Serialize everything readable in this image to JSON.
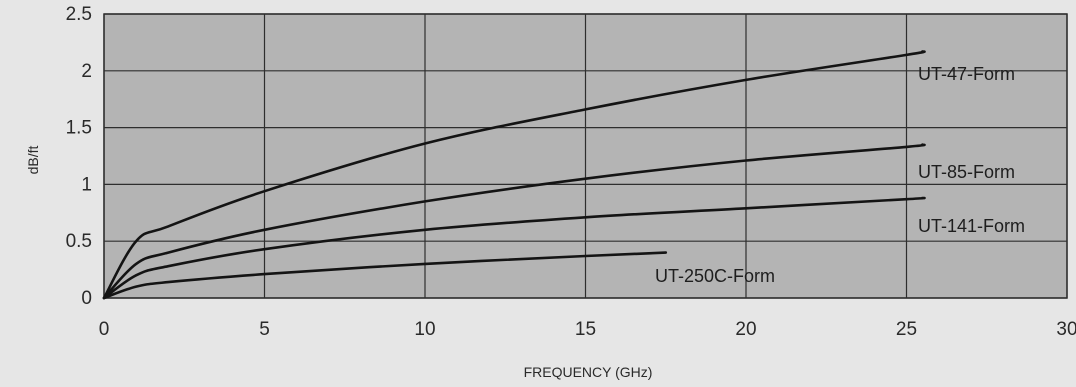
{
  "chart_data": {
    "type": "line",
    "title": "",
    "xlabel": "FREQUENCY (GHz)",
    "ylabel": "dB/ft",
    "xlim": [
      0,
      30
    ],
    "ylim": [
      0,
      2.5
    ],
    "x_ticks": [
      "0",
      "5",
      "10",
      "15",
      "20",
      "25",
      "30"
    ],
    "y_ticks": [
      "0",
      "0.5",
      "1",
      "1.5",
      "2",
      "2.5"
    ],
    "grid": true,
    "colors": {
      "plot_background": "#b4b4b4",
      "page_background": "#e6e6e6",
      "grid": "#2e2e2e",
      "line": "#141414"
    },
    "series": [
      {
        "name": "UT-47-Form",
        "x": [
          0,
          1,
          2,
          5,
          10,
          15,
          20,
          25,
          25.5
        ],
        "y": [
          0,
          0.5,
          0.63,
          0.94,
          1.36,
          1.66,
          1.92,
          2.14,
          2.17
        ]
      },
      {
        "name": "UT-85-Form",
        "x": [
          0,
          1,
          2,
          5,
          10,
          15,
          20,
          25,
          25.5
        ],
        "y": [
          0,
          0.3,
          0.4,
          0.6,
          0.85,
          1.05,
          1.21,
          1.33,
          1.35
        ]
      },
      {
        "name": "UT-141-Form",
        "x": [
          0,
          1,
          2,
          5,
          10,
          15,
          20,
          25,
          25.5
        ],
        "y": [
          0,
          0.2,
          0.28,
          0.43,
          0.6,
          0.71,
          0.79,
          0.87,
          0.88
        ]
      },
      {
        "name": "UT-250C-Form",
        "x": [
          0,
          1,
          2,
          5,
          10,
          15,
          17.5
        ],
        "y": [
          0,
          0.1,
          0.14,
          0.21,
          0.3,
          0.37,
          0.4
        ]
      }
    ]
  }
}
